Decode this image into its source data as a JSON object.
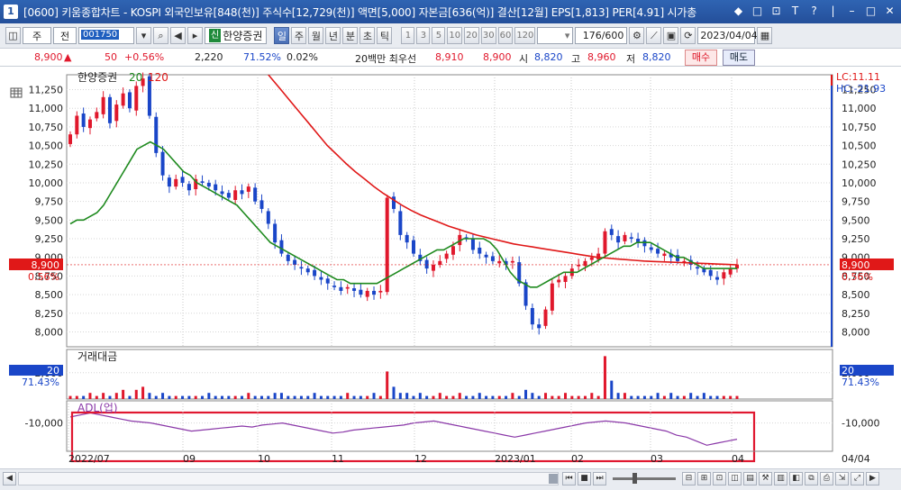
{
  "window": {
    "badge": "1",
    "title": "[0600] 키움종합차트 - KOSPI 외국인보유[848(천)] 주식수[12,729(천)] 액면[5,000] 자본금[636(억)] 결산[12월] EPS[1,813] PER[4.91] 시가총",
    "controls": [
      "◆",
      "□",
      "⊡",
      "T",
      "?",
      "|",
      "–",
      "□",
      "✕"
    ]
  },
  "toolbar": {
    "market_label": "주",
    "all_label": "전",
    "stock_code": "001750",
    "market_tag": "신",
    "stock_name": "한양증권",
    "periods": [
      {
        "label": "일",
        "active": true
      },
      {
        "label": "주",
        "active": false
      },
      {
        "label": "월",
        "active": false
      },
      {
        "label": "년",
        "active": false
      },
      {
        "label": "분",
        "active": false
      },
      {
        "label": "초",
        "active": false
      },
      {
        "label": "틱",
        "active": false
      }
    ],
    "intervals": [
      "1",
      "3",
      "5",
      "10",
      "20",
      "30",
      "60",
      "120"
    ],
    "counter": "176/600",
    "date": "2023/04/04"
  },
  "quote": {
    "price": "8,900",
    "change": "50",
    "change_pct": "+0.56%",
    "volume": "2,220",
    "vol_ratio": "71.52%",
    "turnover": "0.02%",
    "best_label": "20백만 최우선",
    "ask": "8,910",
    "bid": "8,900",
    "open_label": "시",
    "open": "8,820",
    "high_label": "고",
    "high": "8,960",
    "low_label": "저",
    "low": "8,820",
    "buy_label": "매수",
    "sell_label": "매도"
  },
  "chart": {
    "legend_name": "한양증권",
    "legend_ma20": "20",
    "legend_ma120": "120",
    "lc_label": "LC:11.11",
    "hc_label": "HC:-21.93",
    "price_badge": "8,900",
    "pct_badge": "0.56%",
    "volume_panel_label": "거래대금",
    "volume_badge": "20",
    "volume_pct": "71.43%",
    "adl_label": "ADL(업)",
    "adl_tick": "-10,000",
    "colors": {
      "up": "#e0182c",
      "down": "#1a46c8",
      "ma20": "#1e8a1e",
      "ma120": "#e01818",
      "adl": "#8a38a8",
      "highlight": "#e01830"
    },
    "x_labels": [
      "2022/07",
      "09",
      "10",
      "11",
      "12",
      "2023/01",
      "02",
      "03",
      "04"
    ],
    "right_x_label": "04/04"
  },
  "chart_data": {
    "type": "candlestick",
    "y_ticks": [
      11250,
      11000,
      10750,
      10500,
      10250,
      10000,
      9750,
      9500,
      9250,
      9000,
      8750,
      8500,
      8250,
      8000
    ],
    "ylim": [
      7800,
      11450
    ],
    "x_ticks": [
      "2022/07",
      "09",
      "10",
      "11",
      "12",
      "2023/01",
      "02",
      "03",
      "04"
    ],
    "close": [
      10650,
      10900,
      10750,
      10850,
      10950,
      11150,
      10800,
      11050,
      11200,
      11000,
      11300,
      11400,
      10900,
      10400,
      10100,
      9950,
      10050,
      10000,
      9900,
      10050,
      10000,
      9950,
      9900,
      9850,
      9800,
      9900,
      9850,
      9950,
      9750,
      9650,
      9450,
      9200,
      9050,
      8950,
      8900,
      8850,
      8800,
      8750,
      8700,
      8650,
      8600,
      8550,
      8600,
      8550,
      8500,
      8550,
      8500,
      8550,
      9800,
      9650,
      9300,
      9200,
      9050,
      8950,
      8850,
      8900,
      8950,
      9050,
      9150,
      9300,
      9250,
      9100,
      9050,
      9000,
      8950,
      8950,
      8900,
      8950,
      8650,
      8350,
      8100,
      8050,
      8300,
      8650,
      8700,
      8750,
      8850,
      8900,
      8950,
      9000,
      9050,
      9350,
      9300,
      9200,
      9300,
      9250,
      9200,
      9150,
      9100,
      9050,
      9050,
      9000,
      8950,
      8950,
      8900,
      8850,
      8800,
      8750,
      8700,
      8800,
      8850,
      8900
    ],
    "ma20": [
      9450,
      9500,
      9500,
      9550,
      9600,
      9700,
      9850,
      10000,
      10150,
      10300,
      10450,
      10500,
      10550,
      10500,
      10450,
      10350,
      10250,
      10150,
      10100,
      10000,
      9950,
      9900,
      9850,
      9800,
      9750,
      9700,
      9600,
      9500,
      9400,
      9300,
      9200,
      9150,
      9100,
      9050,
      9000,
      8950,
      8900,
      8850,
      8800,
      8750,
      8700,
      8700,
      8650,
      8650,
      8650,
      8650,
      8650,
      8700,
      8750,
      8800,
      8850,
      8900,
      8950,
      9000,
      9050,
      9100,
      9100,
      9150,
      9200,
      9250,
      9250,
      9250,
      9250,
      9200,
      9100,
      8950,
      8800,
      8700,
      8650,
      8600,
      8600,
      8650,
      8700,
      8750,
      8800,
      8800,
      8800,
      8850,
      8900,
      8950,
      9000,
      9050,
      9100,
      9150,
      9150,
      9200,
      9200,
      9200,
      9150,
      9100,
      9050,
      9000,
      9000,
      8950,
      8900,
      8850,
      8850,
      8850,
      8850,
      8850,
      8850
    ],
    "ma120": [
      12000,
      11850,
      11700,
      11550,
      11400,
      11250,
      11100,
      10950,
      10800,
      10650,
      10500,
      10380,
      10260,
      10150,
      10050,
      9950,
      9860,
      9780,
      9700,
      9630,
      9570,
      9520,
      9470,
      9420,
      9380,
      9340,
      9300,
      9270,
      9240,
      9210,
      9180,
      9160,
      9140,
      9120,
      9100,
      9080,
      9060,
      9040,
      9020,
      9000,
      8990,
      8980,
      8970,
      8960,
      8950,
      8945,
      8940,
      8935,
      8930,
      8925,
      8920,
      8915,
      8910,
      8905,
      8900
    ],
    "volume": [
      1,
      1,
      1,
      2,
      1,
      2,
      1,
      2,
      3,
      1,
      3,
      4,
      2,
      1,
      2,
      1,
      1,
      1,
      1,
      1,
      1,
      2,
      1,
      1,
      1,
      1,
      1,
      2,
      1,
      1,
      1,
      2,
      2,
      1,
      1,
      1,
      1,
      2,
      1,
      1,
      1,
      1,
      2,
      1,
      1,
      1,
      2,
      1,
      9,
      4,
      2,
      2,
      1,
      2,
      1,
      1,
      2,
      1,
      1,
      2,
      1,
      1,
      2,
      1,
      1,
      1,
      1,
      2,
      1,
      3,
      2,
      1,
      2,
      1,
      1,
      2,
      1,
      1,
      1,
      2,
      1,
      14,
      6,
      2,
      2,
      1,
      1,
      1,
      1,
      2,
      1,
      2,
      1,
      1,
      2,
      1,
      2,
      1,
      1,
      1,
      1,
      1
    ],
    "volume_ticks": [
      2000
    ],
    "adl": [
      -9700,
      -9600,
      -9500,
      -9600,
      -9700,
      -9800,
      -9900,
      -9950,
      -10000,
      -10100,
      -10200,
      -10300,
      -10400,
      -10350,
      -10300,
      -10250,
      -10200,
      -10150,
      -10200,
      -10100,
      -10050,
      -10000,
      -10100,
      -10200,
      -10300,
      -10400,
      -10500,
      -10450,
      -10350,
      -10300,
      -10250,
      -10200,
      -10150,
      -10100,
      -10000,
      -9950,
      -9900,
      -10000,
      -10100,
      -10200,
      -10300,
      -10400,
      -10500,
      -10600,
      -10700,
      -10600,
      -10500,
      -10400,
      -10300,
      -10200,
      -10100,
      -10000,
      -9950,
      -9900,
      -9950,
      -10000,
      -10100,
      -10200,
      -10300,
      -10400,
      -10600,
      -10700,
      -10900,
      -11100,
      -11000,
      -10900,
      -10800
    ],
    "adl_ticks": [
      -10000
    ]
  }
}
